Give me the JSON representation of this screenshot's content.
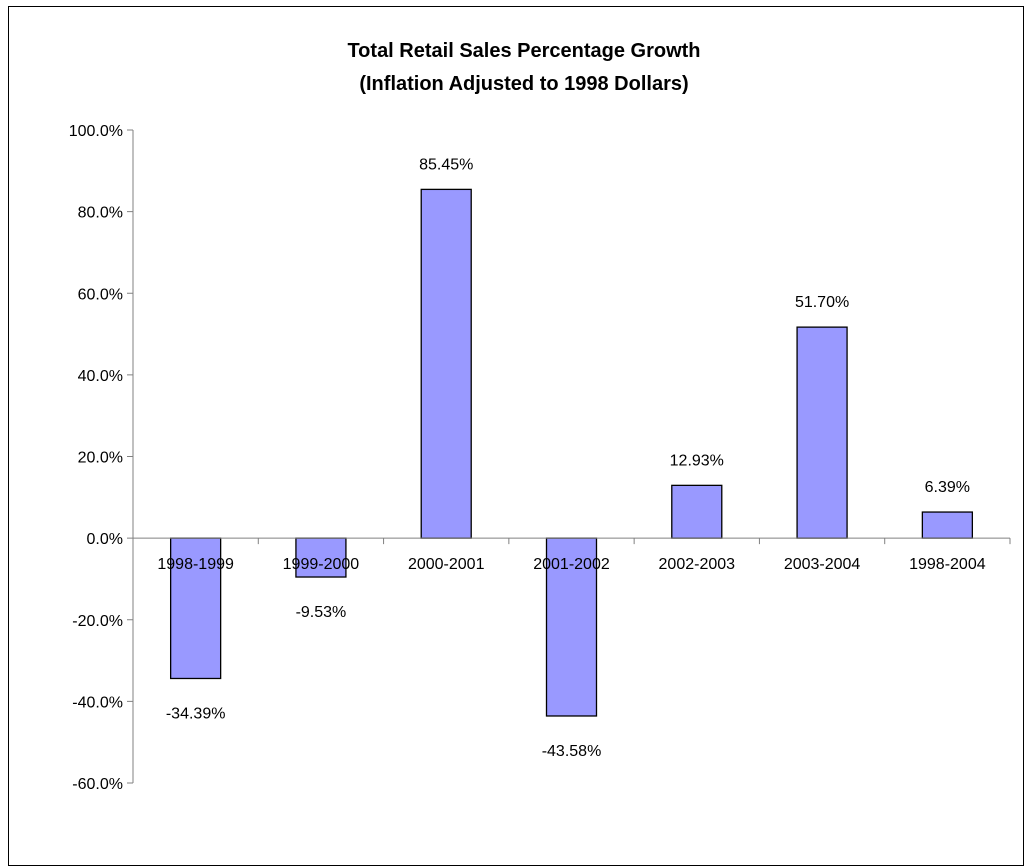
{
  "chart_data": {
    "type": "bar",
    "title": "Total Retail Sales Percentage Growth",
    "subtitle": "(Inflation Adjusted to 1998 Dollars)",
    "xlabel": "",
    "ylabel": "",
    "categories": [
      "1998-1999",
      "1999-2000",
      "2000-2001",
      "2001-2002",
      "2002-2003",
      "2003-2004",
      "1998-2004"
    ],
    "values": [
      -34.39,
      -9.53,
      85.45,
      -43.58,
      12.93,
      51.7,
      6.39
    ],
    "data_labels": [
      "-34.39%",
      "-9.53%",
      "85.45%",
      "-43.58%",
      "12.93%",
      "51.70%",
      "6.39%"
    ],
    "ylim": [
      -60,
      100
    ],
    "y_ticks": [
      100,
      80,
      60,
      40,
      20,
      0,
      -20,
      -40,
      -60
    ],
    "y_tick_labels": [
      "100.0%",
      "80.0%",
      "60.0%",
      "40.0%",
      "20.0%",
      "0.0%",
      "-20.0%",
      "-40.0%",
      "-60.0%"
    ],
    "grid": false,
    "legend": "none",
    "colors": {
      "bar_fill": "#9999ff",
      "bar_stroke": "#000000",
      "axis": "#808080",
      "background": "#ffffff"
    }
  }
}
